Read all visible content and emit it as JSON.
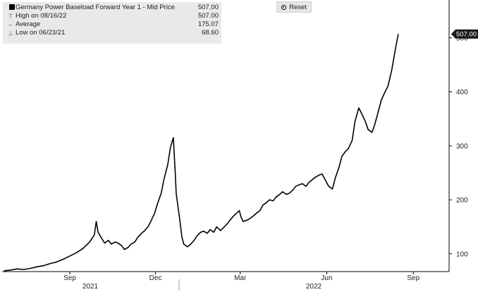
{
  "legend": {
    "rows": [
      {
        "icon": "square-icon",
        "label": "Germany Power Baseload Forward Year 1 - Mid Price",
        "value": "507.00"
      },
      {
        "icon": "high-marker-icon",
        "label": "High on 08/16/22",
        "value": "507.00"
      },
      {
        "icon": "average-marker-icon",
        "label": "Average",
        "value": "175.07"
      },
      {
        "icon": "low-marker-icon",
        "label": "Low on 06/23/21",
        "value": "68.60"
      }
    ]
  },
  "reset_label": "Reset",
  "last_value_tag": "507.00",
  "colors": {
    "line": "#000000",
    "legend_bg": "#e9e9e9",
    "tag_bg": "#1a1a1a"
  },
  "chart_data": {
    "type": "line",
    "title": "",
    "xlabel": "",
    "ylabel": "",
    "ylim": [
      55,
      570
    ],
    "y_ticks": [
      100,
      200,
      300,
      400,
      500
    ],
    "x_ticks": [
      "Sep",
      "Dec",
      "Mar",
      "Jun",
      "Sep"
    ],
    "year_labels": [
      "2021",
      "2022"
    ],
    "grid": false,
    "legend_position": "top-left",
    "series": [
      {
        "name": "Germany Power Baseload Forward Year 1 - Mid Price",
        "x": [
          "2021-06-23",
          "2021-06-30",
          "2021-07-07",
          "2021-07-14",
          "2021-07-21",
          "2021-07-28",
          "2021-08-04",
          "2021-08-11",
          "2021-08-18",
          "2021-08-25",
          "2021-09-01",
          "2021-09-08",
          "2021-09-15",
          "2021-09-22",
          "2021-09-27",
          "2021-09-29",
          "2021-10-01",
          "2021-10-05",
          "2021-10-08",
          "2021-10-12",
          "2021-10-15",
          "2021-10-19",
          "2021-10-22",
          "2021-10-26",
          "2021-10-29",
          "2021-11-02",
          "2021-11-05",
          "2021-11-09",
          "2021-11-12",
          "2021-11-16",
          "2021-11-19",
          "2021-11-23",
          "2021-11-26",
          "2021-11-30",
          "2021-12-03",
          "2021-12-07",
          "2021-12-10",
          "2021-12-14",
          "2021-12-17",
          "2021-12-20",
          "2021-12-21",
          "2021-12-22",
          "2021-12-23",
          "2021-12-27",
          "2021-12-29",
          "2021-12-31",
          "2022-01-04",
          "2022-01-07",
          "2022-01-11",
          "2022-01-14",
          "2022-01-18",
          "2022-01-21",
          "2022-01-25",
          "2022-01-28",
          "2022-02-01",
          "2022-02-04",
          "2022-02-08",
          "2022-02-11",
          "2022-02-15",
          "2022-02-18",
          "2022-02-22",
          "2022-02-25",
          "2022-02-28",
          "2022-03-02",
          "2022-03-04",
          "2022-03-08",
          "2022-03-11",
          "2022-03-15",
          "2022-03-18",
          "2022-03-22",
          "2022-03-25",
          "2022-03-29",
          "2022-04-01",
          "2022-04-05",
          "2022-04-08",
          "2022-04-12",
          "2022-04-15",
          "2022-04-19",
          "2022-04-22",
          "2022-04-26",
          "2022-04-29",
          "2022-05-03",
          "2022-05-06",
          "2022-05-10",
          "2022-05-13",
          "2022-05-17",
          "2022-05-20",
          "2022-05-24",
          "2022-05-27",
          "2022-05-31",
          "2022-06-03",
          "2022-06-07",
          "2022-06-10",
          "2022-06-14",
          "2022-06-17",
          "2022-06-21",
          "2022-06-24",
          "2022-06-28",
          "2022-07-01",
          "2022-07-05",
          "2022-07-08",
          "2022-07-12",
          "2022-07-15",
          "2022-07-19",
          "2022-07-22",
          "2022-07-26",
          "2022-07-29",
          "2022-08-02",
          "2022-08-05",
          "2022-08-09",
          "2022-08-12",
          "2022-08-16"
        ],
        "y": [
          68.6,
          70,
          72,
          71,
          73,
          76,
          78,
          82,
          85,
          90,
          96,
          102,
          110,
          122,
          135,
          160,
          140,
          128,
          120,
          125,
          118,
          122,
          120,
          115,
          108,
          112,
          118,
          122,
          130,
          138,
          142,
          150,
          160,
          175,
          192,
          212,
          238,
          265,
          298,
          315,
          280,
          250,
          212,
          160,
          132,
          118,
          113,
          117,
          125,
          133,
          140,
          142,
          138,
          145,
          140,
          150,
          143,
          148,
          155,
          162,
          170,
          175,
          180,
          168,
          160,
          162,
          165,
          170,
          175,
          180,
          190,
          195,
          200,
          198,
          205,
          210,
          215,
          210,
          212,
          218,
          225,
          228,
          230,
          225,
          232,
          238,
          242,
          246,
          248,
          235,
          225,
          220,
          240,
          260,
          280,
          290,
          295,
          310,
          345,
          370,
          360,
          345,
          330,
          325,
          340,
          365,
          385,
          400,
          410,
          440,
          470,
          507
        ]
      }
    ]
  }
}
